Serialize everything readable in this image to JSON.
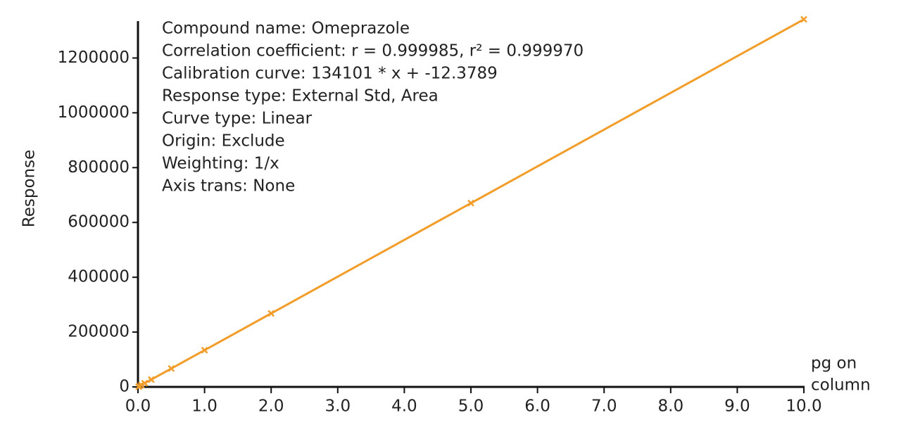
{
  "chart_data": {
    "type": "line",
    "ylabel": "Response",
    "xlabel_lines": [
      "pg on",
      "column"
    ],
    "annotations": [
      "Compound name: Omeprazole",
      "Correlation coefficient: r = 0.999985, r² = 0.999970",
      "Calibration curve: 134101 * x + -12.3789",
      "Response type: External Std, Area",
      "Curve type: Linear",
      "Origin: Exclude",
      "Weighting: 1/x",
      "Axis trans: None"
    ],
    "x": [
      0.01,
      0.02,
      0.05,
      0.1,
      0.2,
      0.5,
      1,
      2,
      5,
      10
    ],
    "series": [
      {
        "color": "#f29d2a",
        "values": [
          1300,
          2700,
          6700,
          13400,
          26800,
          67000,
          134100,
          268200,
          670500,
          1341000
        ]
      }
    ],
    "xlim": [
      0,
      10
    ],
    "ylim": [
      0,
      1350000
    ],
    "xticks": [
      {
        "value": 0,
        "label": "0.0"
      },
      {
        "value": 1,
        "label": "1.0"
      },
      {
        "value": 2,
        "label": "2.0"
      },
      {
        "value": 3,
        "label": "3.0"
      },
      {
        "value": 4,
        "label": "4.0"
      },
      {
        "value": 5,
        "label": "5.0"
      },
      {
        "value": 6,
        "label": "6.0"
      },
      {
        "value": 7,
        "label": "7.0"
      },
      {
        "value": 8,
        "label": "8.0"
      },
      {
        "value": 9,
        "label": "9.0"
      },
      {
        "value": 10,
        "label": "10.0"
      }
    ],
    "yticks": [
      0,
      200000,
      400000,
      600000,
      800000,
      1000000,
      1200000
    ]
  }
}
